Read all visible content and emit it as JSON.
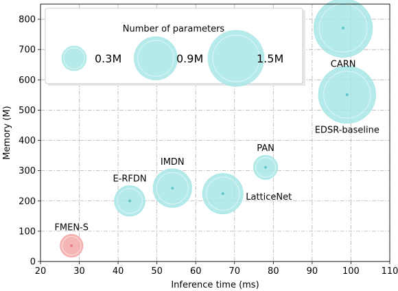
{
  "chart_data": {
    "type": "scatter",
    "xlabel": "Inference time (ms)",
    "ylabel": "Memory (M)",
    "xlim": [
      20,
      110
    ],
    "ylim": [
      0,
      850
    ],
    "xticks": [
      20,
      30,
      40,
      50,
      60,
      70,
      80,
      90,
      100,
      110
    ],
    "yticks": [
      0,
      100,
      200,
      300,
      400,
      500,
      600,
      700,
      800
    ],
    "grid": true,
    "grid_style": "dash-dot",
    "size_encoding": "Number of parameters (M)",
    "colors": {
      "highlight": "#f4a8a8",
      "default": "#a8e6e6",
      "highlight_dot": "#e88080",
      "default_dot": "#5cc8c8"
    },
    "points": [
      {
        "name": "FMEN-S",
        "x": 28,
        "y": 52,
        "params": 0.24,
        "highlight": true,
        "label_pos": "above"
      },
      {
        "name": "E-RFDN",
        "x": 43,
        "y": 200,
        "params": 0.43,
        "highlight": false,
        "label_pos": "above"
      },
      {
        "name": "IMDN",
        "x": 54,
        "y": 242,
        "params": 0.69,
        "highlight": false,
        "label_pos": "above"
      },
      {
        "name": "LatticeNet",
        "x": 67,
        "y": 224,
        "params": 0.76,
        "highlight": false,
        "label_pos": "right"
      },
      {
        "name": "PAN",
        "x": 78,
        "y": 311,
        "params": 0.27,
        "highlight": false,
        "label_pos": "above"
      },
      {
        "name": "CARN",
        "x": 98,
        "y": 771,
        "params": 1.59,
        "highlight": false,
        "label_pos": "below"
      },
      {
        "name": "EDSR-baseline",
        "x": 99,
        "y": 551,
        "params": 1.52,
        "highlight": false,
        "label_pos": "below"
      }
    ],
    "legend": {
      "title": "Number of parameters",
      "placement": "upper-left",
      "entries": [
        {
          "label": "0.3M",
          "params": 0.3
        },
        {
          "label": "0.9M",
          "params": 0.9
        },
        {
          "label": "1.5M",
          "params": 1.5
        }
      ]
    }
  }
}
